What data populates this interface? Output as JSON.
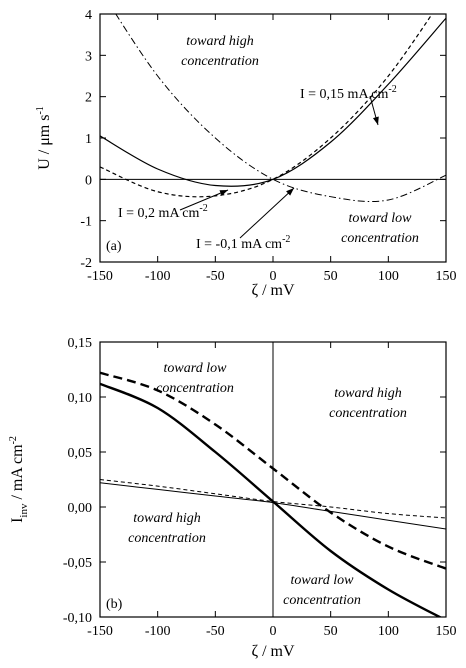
{
  "chart_data": [
    {
      "type": "line",
      "panel_label": "(a)",
      "xlabel": "ζ / mV",
      "ylabel": "U / μm s",
      "ylabel_sup": "-1",
      "xlim": [
        -150,
        150
      ],
      "ylim": [
        -2,
        4
      ],
      "xticks": [
        -150,
        -100,
        -50,
        0,
        50,
        100,
        150
      ],
      "yticks": [
        -2,
        -1,
        0,
        1,
        2,
        3,
        4
      ],
      "series": [
        {
          "name": "I = 0,15 mA cm",
          "name_sup": "-2",
          "style": "solid",
          "x": [
            -150,
            -100,
            -50,
            0,
            50,
            100,
            150
          ],
          "y": [
            1.05,
            0.25,
            -0.15,
            0.0,
            0.9,
            2.3,
            3.9
          ]
        },
        {
          "name": "I = 0,2 mA cm",
          "name_sup": "-2",
          "style": "dashed",
          "x": [
            -150,
            -100,
            -50,
            0,
            50,
            100,
            150
          ],
          "y": [
            0.3,
            -0.3,
            -0.4,
            0.0,
            1.0,
            2.5,
            4.5
          ]
        },
        {
          "name": "I = -0,1 mA cm",
          "name_sup": "-2",
          "style": "dashdot",
          "x": [
            -150,
            -100,
            -50,
            0,
            50,
            100,
            150
          ],
          "y": [
            4.6,
            2.5,
            1.0,
            0.0,
            -0.42,
            -0.5,
            0.1
          ]
        }
      ],
      "annotations": [
        {
          "line1": "toward high",
          "line2": "concentration"
        },
        {
          "line1": "toward low",
          "line2": "concentration"
        }
      ],
      "grid": false
    },
    {
      "type": "line",
      "panel_label": "(b)",
      "xlabel": "ζ / mV",
      "ylabel_main": "I",
      "ylabel_sub": "inv",
      "ylabel_rest": " / mA cm",
      "ylabel_sup": "-2",
      "xlim": [
        -150,
        150
      ],
      "ylim": [
        -0.1,
        0.15
      ],
      "xticks": [
        -150,
        -100,
        -50,
        0,
        50,
        100,
        150
      ],
      "yticks": [
        -0.1,
        -0.05,
        0.0,
        0.05,
        0.1,
        0.15
      ],
      "ytick_labels": [
        "-0,10",
        "-0,05",
        "0,00",
        "0,05",
        "0,10",
        "0,15"
      ],
      "series": [
        {
          "style": "thick-dashed",
          "x": [
            -150,
            -100,
            -50,
            0,
            50,
            100,
            150
          ],
          "y": [
            0.122,
            0.106,
            0.075,
            0.035,
            -0.005,
            -0.036,
            -0.056
          ]
        },
        {
          "style": "thick-solid",
          "x": [
            -150,
            -100,
            -50,
            0,
            50,
            100,
            150
          ],
          "y": [
            0.112,
            0.09,
            0.05,
            0.005,
            -0.04,
            -0.075,
            -0.103
          ]
        },
        {
          "style": "thin-dashed",
          "x": [
            -150,
            -100,
            -50,
            0,
            50,
            100,
            150
          ],
          "y": [
            0.025,
            0.019,
            0.012,
            0.005,
            0.0,
            -0.006,
            -0.01
          ]
        },
        {
          "style": "thin-solid",
          "x": [
            -150,
            -100,
            -50,
            0,
            50,
            100,
            150
          ],
          "y": [
            0.022,
            0.016,
            0.01,
            0.004,
            -0.004,
            -0.012,
            -0.02
          ]
        }
      ],
      "annotations": [
        {
          "line1": "toward low",
          "line2": "concentration"
        },
        {
          "line1": "toward high",
          "line2": "concentration"
        },
        {
          "line1": "toward high",
          "line2": "concentration"
        },
        {
          "line1": "toward low",
          "line2": "concentration"
        }
      ],
      "grid": false
    }
  ]
}
